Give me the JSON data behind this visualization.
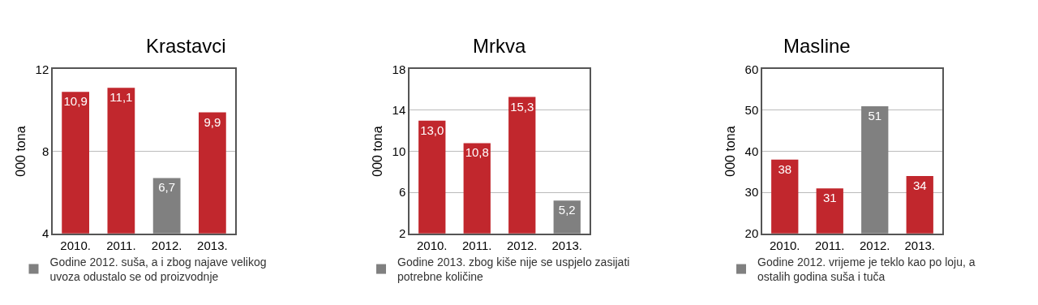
{
  "chart_data": [
    {
      "type": "bar",
      "title": "Krastavci",
      "ylabel": "000 tona",
      "categories": [
        "2010.",
        "2011.",
        "2012.",
        "2013."
      ],
      "ylim": [
        4,
        12
      ],
      "yticks": [
        4,
        8,
        12
      ],
      "grid": "y",
      "legend": "bottom",
      "series": [
        {
          "color": "#c1272d",
          "values": [
            10.9,
            11.1,
            null,
            9.9
          ],
          "value_labels": [
            "10,9",
            "11,1",
            null,
            "9,9"
          ]
        },
        {
          "name": "Godine 2012. suša, a i zbog najave velikog\nuvoza odustalo se od proizvodnje",
          "color": "#808080",
          "values": [
            null,
            null,
            6.7,
            null
          ],
          "value_labels": [
            null,
            null,
            "6,7",
            null
          ]
        }
      ]
    },
    {
      "type": "bar",
      "title": "Mrkva",
      "ylabel": "000 tona",
      "categories": [
        "2010.",
        "2011.",
        "2012.",
        "2013."
      ],
      "ylim": [
        2,
        18
      ],
      "yticks": [
        2,
        6,
        10,
        14,
        18
      ],
      "grid": "y",
      "legend": "bottom",
      "series": [
        {
          "color": "#c1272d",
          "values": [
            13.0,
            10.8,
            15.3,
            null
          ],
          "value_labels": [
            "13,0",
            "10,8",
            "15,3",
            null
          ]
        },
        {
          "name": "Godine 2013. zbog kiše nije se uspjelo zasijati\npotrebne količine",
          "color": "#808080",
          "values": [
            null,
            null,
            null,
            5.2
          ],
          "value_labels": [
            null,
            null,
            null,
            "5,2"
          ]
        }
      ]
    },
    {
      "type": "bar",
      "title": "Masline",
      "ylabel": "000 tona",
      "categories": [
        "2010.",
        "2011.",
        "2012.",
        "2013."
      ],
      "ylim": [
        20,
        60
      ],
      "yticks": [
        20,
        30,
        40,
        50,
        60
      ],
      "grid": "y",
      "legend": "bottom",
      "series": [
        {
          "color": "#c1272d",
          "values": [
            38,
            31,
            null,
            34
          ],
          "value_labels": [
            "38",
            "31",
            null,
            "34"
          ]
        },
        {
          "name": "Godine 2012. vrijeme je teklo kao po loju, a\nostalih godina suša i tuča",
          "color": "#808080",
          "values": [
            null,
            null,
            51,
            null
          ],
          "value_labels": [
            null,
            null,
            "51",
            null
          ]
        }
      ]
    }
  ]
}
